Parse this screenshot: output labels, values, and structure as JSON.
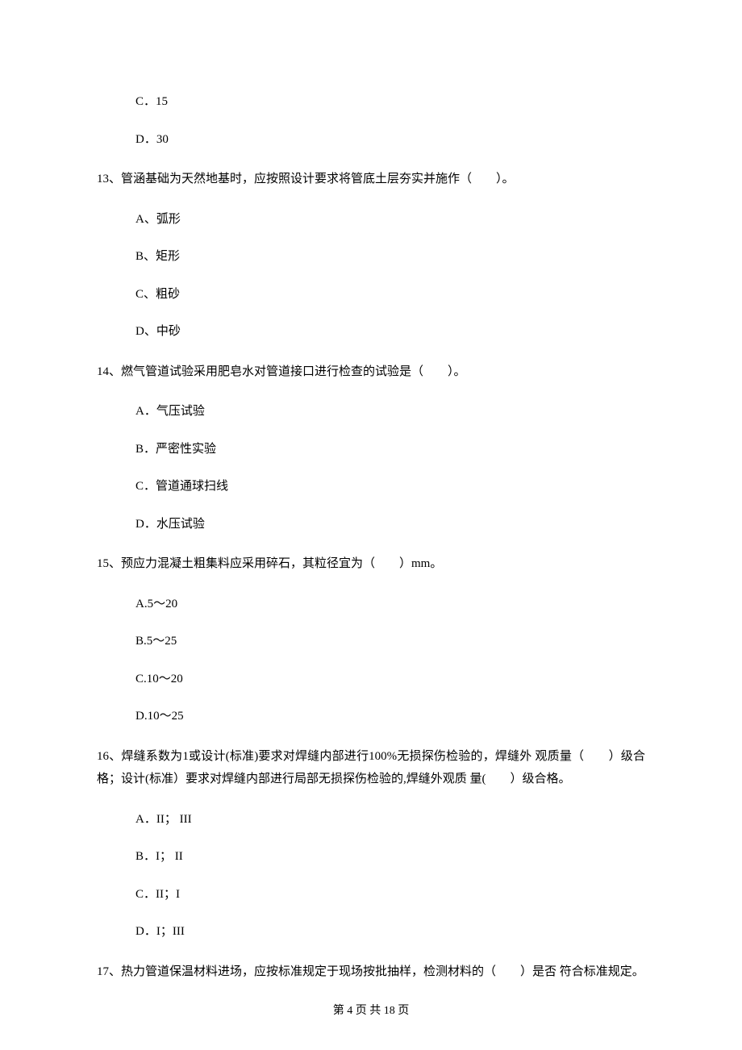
{
  "options": {
    "q12_c": "C．15",
    "q12_d": "D．30"
  },
  "q13": {
    "text": "13、管涵基础为天然地基时，应按照设计要求将管底土层夯实并施作（　　）。",
    "a": "A、弧形",
    "b": "B、矩形",
    "c": "C、粗砂",
    "d": "D、中砂"
  },
  "q14": {
    "text": "14、燃气管道试验采用肥皂水对管道接口进行检查的试验是（　　）。",
    "a": "A．气压试验",
    "b": "B．严密性实验",
    "c": "C．管道通球扫线",
    "d": "D．水压试验"
  },
  "q15": {
    "text": "15、预应力混凝土粗集料应采用碎石，其粒径宜为（　　）mm。",
    "a": "A.5～20",
    "b": "B.5～25",
    "c": "C.10～20",
    "d": "D.10～25"
  },
  "q16": {
    "text": "16、焊缝系数为1或设计(标准)要求对焊缝内部进行100%无损探伤检验的，焊缝外 观质量（　　）级合格；设计(标准）要求对焊缝内部进行局部无损探伤检验的,焊缝外观质 量(　　）级合格。",
    "a": "A．II； III",
    "b": "B．I； II",
    "c": "C．II；I",
    "d": "D．I；III"
  },
  "q17": {
    "text": "17、热力管道保温材料进场，应按标准规定于现场按批抽样，检测材料的（　　）是否 符合标准规定。"
  },
  "footer": {
    "text": "第 4 页 共 18 页"
  }
}
